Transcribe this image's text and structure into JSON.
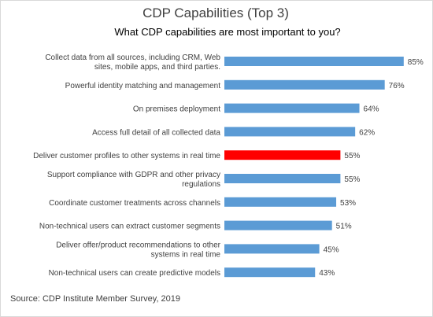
{
  "title": "CDP Capabilities (Top 3)",
  "subtitle": "What CDP capabilities are most important to you?",
  "source": "Source: CDP Institute Member Survey, 2019",
  "chart_data": {
    "type": "bar",
    "orientation": "horizontal",
    "categories": [
      "Collect data from all sources, including CRM, Web sites, mobile apps, and third parties.",
      "Powerful identity matching and management",
      "On premises deployment",
      "Access full detail of all collected data",
      "Deliver customer profiles to other systems in real time",
      "Support compliance with GDPR and other privacy regulations",
      "Coordinate customer treatments across channels",
      "Non-technical users can extract customer segments",
      "Deliver offer/product recommendations to other systems in real time",
      "Non-technical users can create predictive models"
    ],
    "category_lines": [
      [
        "Collect data from all sources, including CRM, Web",
        "sites, mobile apps, and third parties."
      ],
      [
        "Powerful identity matching and management"
      ],
      [
        "On premises deployment"
      ],
      [
        "Access full detail of all collected data"
      ],
      [
        "Deliver customer profiles to other systems in real time"
      ],
      [
        "Support compliance with GDPR and other privacy",
        "regulations"
      ],
      [
        "Coordinate customer treatments across channels"
      ],
      [
        "Non-technical users can extract customer segments"
      ],
      [
        "Deliver offer/product recommendations to other",
        "systems in real time"
      ],
      [
        "Non-technical users can create predictive models"
      ]
    ],
    "values": [
      85,
      76,
      64,
      62,
      55,
      55,
      53,
      51,
      45,
      43
    ],
    "value_labels": [
      "85%",
      "76%",
      "64%",
      "62%",
      "55%",
      "55%",
      "53%",
      "51%",
      "45%",
      "43%"
    ],
    "unit": "%",
    "highlight_index": 4,
    "colors": {
      "bar": "#5b9bd5",
      "highlight": "#ff0000",
      "text": "#404040"
    },
    "grid": false,
    "legend": "none"
  }
}
